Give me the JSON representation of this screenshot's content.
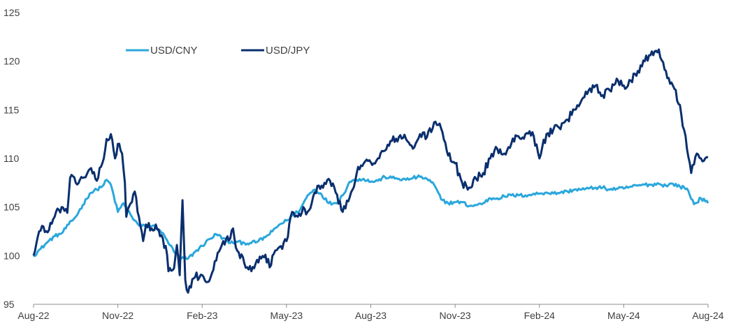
{
  "chart_data": {
    "type": "line",
    "title": "",
    "xlabel": "",
    "ylabel": "",
    "ylim": [
      95,
      125
    ],
    "yticks": [
      95,
      100,
      105,
      110,
      115,
      120,
      125
    ],
    "x_tick_labels": [
      "Aug-22",
      "Nov-22",
      "Feb-23",
      "May-23",
      "Aug-23",
      "Nov-23",
      "Feb-24",
      "May-24",
      "Aug-24"
    ],
    "x_axis_months": 24,
    "grid": false,
    "legend_position": "top-left",
    "series": [
      {
        "name": "USD/CNY",
        "color": "#2aa7dc",
        "points": [
          [
            0,
            100.0
          ],
          [
            0.25,
            100.7
          ],
          [
            0.5,
            101.4
          ],
          [
            0.75,
            102.0
          ],
          [
            1.0,
            102.3
          ],
          [
            1.25,
            103.2
          ],
          [
            1.5,
            104.0
          ],
          [
            1.75,
            105.2
          ],
          [
            2.0,
            106.4
          ],
          [
            2.25,
            106.8
          ],
          [
            2.5,
            107.3
          ],
          [
            2.6,
            107.8
          ],
          [
            2.75,
            107.3
          ],
          [
            3.0,
            104.5
          ],
          [
            3.2,
            105.4
          ],
          [
            3.5,
            104.0
          ],
          [
            3.75,
            103.1
          ],
          [
            4.0,
            103.0
          ],
          [
            4.25,
            103.1
          ],
          [
            4.5,
            102.6
          ],
          [
            4.75,
            101.6
          ],
          [
            5.0,
            100.4
          ],
          [
            5.25,
            99.7
          ],
          [
            5.5,
            99.7
          ],
          [
            5.75,
            100.4
          ],
          [
            6.0,
            101.0
          ],
          [
            6.25,
            101.7
          ],
          [
            6.5,
            102.2
          ],
          [
            6.75,
            101.8
          ],
          [
            7.0,
            101.3
          ],
          [
            7.25,
            101.4
          ],
          [
            7.5,
            101.3
          ],
          [
            7.75,
            101.3
          ],
          [
            8.0,
            101.5
          ],
          [
            8.25,
            101.9
          ],
          [
            8.5,
            102.5
          ],
          [
            8.75,
            103.2
          ],
          [
            9.0,
            103.6
          ],
          [
            9.25,
            104.2
          ],
          [
            9.5,
            104.8
          ],
          [
            9.75,
            106.2
          ],
          [
            10.0,
            106.8
          ],
          [
            10.25,
            106.3
          ],
          [
            10.5,
            105.4
          ],
          [
            10.75,
            105.4
          ],
          [
            11.0,
            106.2
          ],
          [
            11.25,
            107.6
          ],
          [
            11.5,
            107.8
          ],
          [
            11.75,
            107.9
          ],
          [
            12.0,
            107.6
          ],
          [
            12.25,
            107.7
          ],
          [
            12.5,
            108.1
          ],
          [
            12.75,
            108.0
          ],
          [
            13.0,
            107.9
          ],
          [
            13.25,
            107.8
          ],
          [
            13.5,
            108.0
          ],
          [
            13.75,
            108.1
          ],
          [
            14.0,
            107.9
          ],
          [
            14.25,
            107.3
          ],
          [
            14.5,
            105.8
          ],
          [
            14.75,
            105.4
          ],
          [
            15.0,
            105.5
          ],
          [
            15.25,
            105.5
          ],
          [
            15.5,
            105.1
          ],
          [
            15.75,
            105.2
          ],
          [
            16.0,
            105.4
          ],
          [
            16.25,
            105.9
          ],
          [
            16.5,
            105.9
          ],
          [
            16.75,
            106.1
          ],
          [
            17.0,
            106.2
          ],
          [
            17.25,
            106.2
          ],
          [
            17.5,
            106.2
          ],
          [
            17.75,
            106.3
          ],
          [
            18.0,
            106.4
          ],
          [
            18.25,
            106.5
          ],
          [
            18.5,
            106.4
          ],
          [
            18.75,
            106.5
          ],
          [
            19.0,
            106.6
          ],
          [
            19.25,
            106.8
          ],
          [
            19.5,
            106.8
          ],
          [
            19.75,
            106.9
          ],
          [
            20.0,
            107.0
          ],
          [
            20.25,
            107.0
          ],
          [
            20.5,
            106.8
          ],
          [
            20.75,
            106.9
          ],
          [
            21.0,
            106.9
          ],
          [
            21.25,
            107.1
          ],
          [
            21.5,
            107.2
          ],
          [
            21.75,
            107.3
          ],
          [
            22.0,
            107.3
          ],
          [
            22.25,
            107.4
          ],
          [
            22.5,
            107.2
          ],
          [
            22.75,
            107.4
          ],
          [
            23.0,
            107.1
          ],
          [
            23.25,
            106.9
          ],
          [
            23.5,
            105.3
          ],
          [
            23.75,
            105.9
          ],
          [
            24.0,
            105.4
          ]
        ]
      },
      {
        "name": "USD/JPY",
        "color": "#0a2f6e",
        "points": [
          [
            0,
            100.0
          ],
          [
            0.2,
            102.5
          ],
          [
            0.35,
            103.0
          ],
          [
            0.5,
            102.4
          ],
          [
            0.75,
            104.0
          ],
          [
            1.0,
            105.0
          ],
          [
            1.2,
            104.4
          ],
          [
            1.3,
            108.0
          ],
          [
            1.5,
            107.5
          ],
          [
            1.75,
            108.0
          ],
          [
            2.0,
            108.9
          ],
          [
            2.25,
            107.7
          ],
          [
            2.5,
            110.0
          ],
          [
            2.6,
            112.0
          ],
          [
            2.75,
            112.5
          ],
          [
            2.9,
            110.0
          ],
          [
            3.0,
            111.5
          ],
          [
            3.15,
            110.5
          ],
          [
            3.25,
            107.5
          ],
          [
            3.3,
            104.0
          ],
          [
            3.5,
            105.5
          ],
          [
            3.6,
            106.6
          ],
          [
            3.75,
            104.0
          ],
          [
            3.9,
            101.5
          ],
          [
            4.0,
            103.2
          ],
          [
            4.2,
            102.8
          ],
          [
            4.35,
            103.2
          ],
          [
            4.5,
            102.0
          ],
          [
            4.7,
            101.0
          ],
          [
            4.8,
            98.4
          ],
          [
            5.0,
            98.7
          ],
          [
            5.1,
            101.1
          ],
          [
            5.2,
            98.0
          ],
          [
            5.3,
            105.7
          ],
          [
            5.4,
            97.5
          ],
          [
            5.5,
            96.2
          ],
          [
            5.75,
            97.8
          ],
          [
            6.0,
            98.0
          ],
          [
            6.2,
            97.3
          ],
          [
            6.5,
            99.5
          ],
          [
            6.75,
            101.5
          ],
          [
            7.0,
            101.8
          ],
          [
            7.1,
            102.8
          ],
          [
            7.25,
            100.5
          ],
          [
            7.5,
            99.2
          ],
          [
            7.75,
            98.4
          ],
          [
            8.0,
            99.3
          ],
          [
            8.25,
            100.1
          ],
          [
            8.4,
            98.8
          ],
          [
            8.5,
            100.0
          ],
          [
            8.75,
            100.9
          ],
          [
            9.0,
            101.5
          ],
          [
            9.2,
            104.5
          ],
          [
            9.4,
            104.0
          ],
          [
            9.6,
            105.0
          ],
          [
            9.75,
            104.5
          ],
          [
            10.0,
            106.5
          ],
          [
            10.25,
            107.2
          ],
          [
            10.5,
            107.9
          ],
          [
            10.75,
            106.5
          ],
          [
            11.0,
            104.5
          ],
          [
            11.25,
            106.0
          ],
          [
            11.5,
            108.5
          ],
          [
            11.75,
            109.5
          ],
          [
            12.0,
            109.6
          ],
          [
            12.25,
            110.0
          ],
          [
            12.5,
            110.8
          ],
          [
            12.75,
            111.8
          ],
          [
            13.0,
            112.2
          ],
          [
            13.25,
            112.0
          ],
          [
            13.5,
            111.0
          ],
          [
            13.75,
            112.5
          ],
          [
            14.0,
            112.2
          ],
          [
            14.25,
            113.7
          ],
          [
            14.5,
            113.1
          ],
          [
            14.75,
            110.3
          ],
          [
            15.0,
            109.5
          ],
          [
            15.25,
            107.5
          ],
          [
            15.5,
            107.0
          ],
          [
            15.75,
            107.9
          ],
          [
            16.0,
            108.5
          ],
          [
            16.25,
            110.0
          ],
          [
            16.5,
            111.0
          ],
          [
            16.75,
            110.5
          ],
          [
            17.0,
            111.5
          ],
          [
            17.25,
            112.3
          ],
          [
            17.5,
            112.5
          ],
          [
            17.75,
            112.7
          ],
          [
            18.0,
            110.0
          ],
          [
            18.25,
            112.5
          ],
          [
            18.5,
            113.0
          ],
          [
            18.75,
            113.0
          ],
          [
            19.0,
            114.0
          ],
          [
            19.25,
            115.0
          ],
          [
            19.5,
            116.0
          ],
          [
            19.75,
            117.0
          ],
          [
            20.0,
            117.5
          ],
          [
            20.25,
            116.5
          ],
          [
            20.5,
            117.0
          ],
          [
            20.75,
            118.2
          ],
          [
            21.0,
            117.5
          ],
          [
            21.25,
            118.0
          ],
          [
            21.5,
            119.0
          ],
          [
            21.75,
            120.0
          ],
          [
            22.0,
            121.0
          ],
          [
            22.25,
            121.2
          ],
          [
            22.5,
            119.0
          ],
          [
            22.75,
            117.5
          ],
          [
            23.0,
            115.5
          ],
          [
            23.25,
            111.0
          ],
          [
            23.4,
            108.5
          ],
          [
            23.6,
            110.5
          ],
          [
            23.75,
            110.0
          ],
          [
            24.0,
            110.1
          ]
        ]
      }
    ]
  }
}
